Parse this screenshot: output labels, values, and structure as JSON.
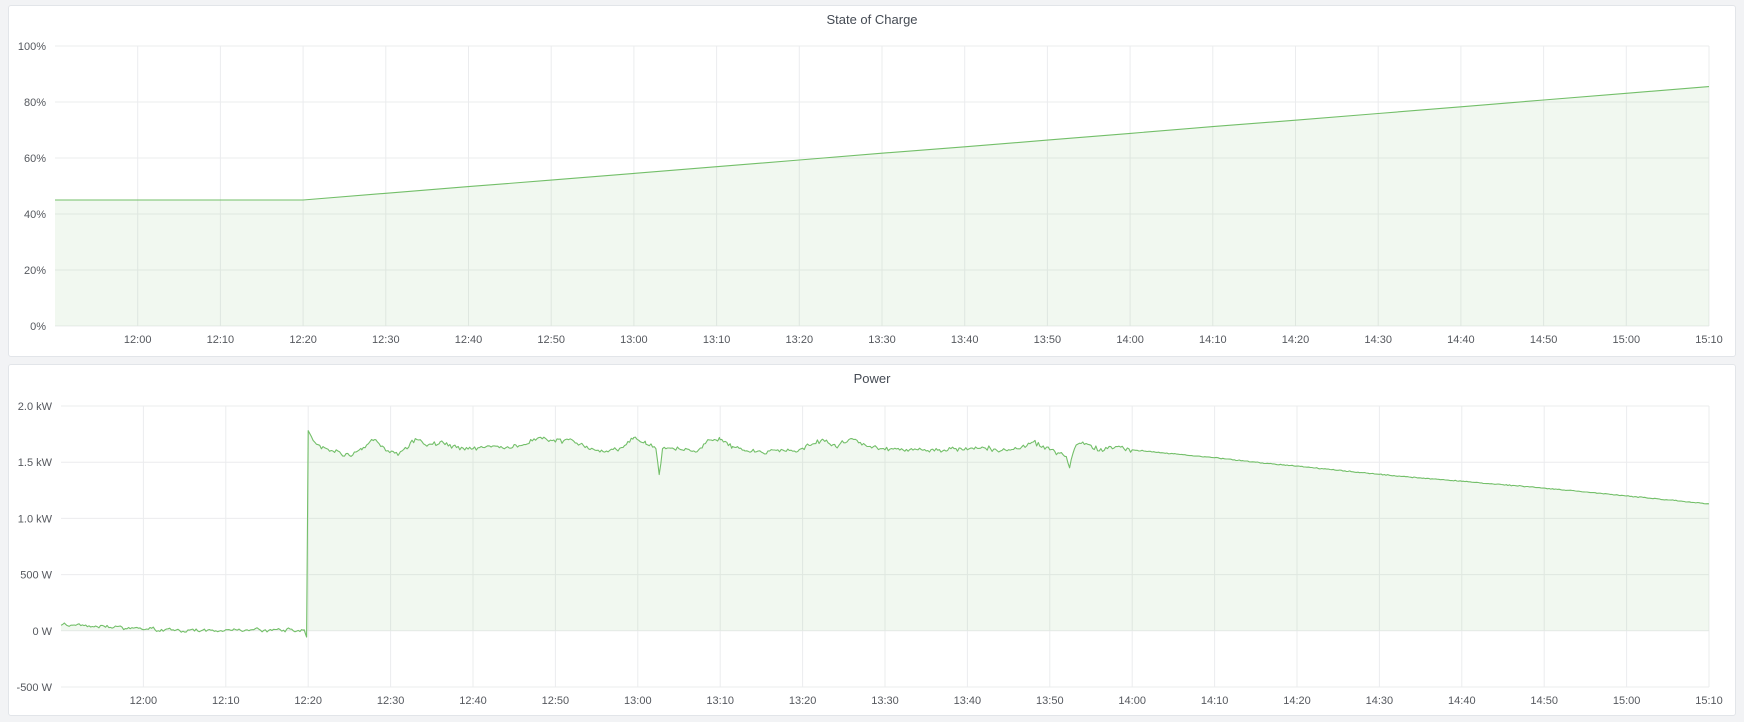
{
  "page": {
    "background_color": "#f2f3f5",
    "panel_background": "#ffffff",
    "panel_border_color": "#e2e5e9",
    "grid_color": "#ebecee",
    "tick_text_color": "#55585e",
    "title_text_color": "#454b54",
    "accent_green": "#73bf69"
  },
  "chart_data": [
    {
      "id": "soc",
      "type": "area",
      "title": "State of Charge",
      "line_color": "#73bf69",
      "fill_color": "rgba(115,191,105,0.10)",
      "x_range": [
        "11:50",
        "15:10"
      ],
      "x_ticks": [
        "12:00",
        "12:10",
        "12:20",
        "12:30",
        "12:40",
        "12:50",
        "13:00",
        "13:10",
        "13:20",
        "13:30",
        "13:40",
        "13:50",
        "14:00",
        "14:10",
        "14:20",
        "14:30",
        "14:40",
        "14:50",
        "15:00",
        "15:10"
      ],
      "ylim": [
        0,
        100
      ],
      "ylabel": "",
      "y_ticks": [
        {
          "v": 0,
          "label": "0%"
        },
        {
          "v": 20,
          "label": "20%"
        },
        {
          "v": 40,
          "label": "40%"
        },
        {
          "v": 60,
          "label": "60%"
        },
        {
          "v": 80,
          "label": "80%"
        },
        {
          "v": 100,
          "label": "100%"
        }
      ],
      "series": [
        {
          "name": "State of Charge",
          "unit": "percent",
          "points": [
            [
              "11:50",
              45.0
            ],
            [
              "12:00",
              45.0
            ],
            [
              "12:10",
              45.0
            ],
            [
              "12:20",
              45.0
            ],
            [
              "12:30",
              47.4
            ],
            [
              "12:40",
              49.8
            ],
            [
              "12:50",
              52.1
            ],
            [
              "13:00",
              54.5
            ],
            [
              "13:10",
              56.9
            ],
            [
              "13:20",
              59.3
            ],
            [
              "13:30",
              61.7
            ],
            [
              "13:40",
              64.0
            ],
            [
              "13:50",
              66.4
            ],
            [
              "14:00",
              68.8
            ],
            [
              "14:10",
              71.2
            ],
            [
              "14:20",
              73.5
            ],
            [
              "14:30",
              75.9
            ],
            [
              "14:40",
              78.3
            ],
            [
              "14:50",
              80.7
            ],
            [
              "15:00",
              83.1
            ],
            [
              "15:10",
              85.5
            ]
          ]
        }
      ]
    },
    {
      "id": "power",
      "type": "area",
      "title": "Power",
      "line_color": "#73bf69",
      "fill_color": "rgba(115,191,105,0.10)",
      "x_range": [
        "11:50",
        "15:10"
      ],
      "x_ticks": [
        "12:00",
        "12:10",
        "12:20",
        "12:30",
        "12:40",
        "12:50",
        "13:00",
        "13:10",
        "13:20",
        "13:30",
        "13:40",
        "13:50",
        "14:00",
        "14:10",
        "14:20",
        "14:30",
        "14:40",
        "14:50",
        "15:00",
        "15:10"
      ],
      "ylim": [
        -500,
        2000
      ],
      "ylabel": "",
      "y_ticks": [
        {
          "v": -500,
          "label": "-500 W"
        },
        {
          "v": 0,
          "label": "0 W"
        },
        {
          "v": 500,
          "label": "500 W"
        },
        {
          "v": 1000,
          "label": "1.0 kW"
        },
        {
          "v": 1500,
          "label": "1.5 kW"
        },
        {
          "v": 2000,
          "label": "2.0 kW"
        }
      ],
      "series": [
        {
          "name": "Power",
          "unit": "W",
          "segments": [
            {
              "label": "idle-noise-before-charge",
              "noise_w": 18,
              "anchors": [
                [
                  "11:50",
                  50
                ],
                [
                  "11:50:30",
                  62
                ],
                [
                  "11:51",
                  40
                ],
                [
                  "11:52",
                  58
                ],
                [
                  "11:53",
                  52
                ],
                [
                  "11:54",
                  35
                ],
                [
                  "11:55",
                  48
                ],
                [
                  "11:56",
                  30
                ],
                [
                  "11:57",
                  40
                ],
                [
                  "11:58",
                  18
                ],
                [
                  "11:59",
                  28
                ],
                [
                  "12:00",
                  10
                ],
                [
                  "12:01",
                  22
                ],
                [
                  "12:02",
                  -5
                ],
                [
                  "12:03",
                  18
                ],
                [
                  "12:04",
                  8
                ],
                [
                  "12:05",
                  -12
                ],
                [
                  "12:06",
                  15
                ],
                [
                  "12:07",
                  0
                ],
                [
                  "12:08",
                  12
                ],
                [
                  "12:09",
                  -8
                ],
                [
                  "12:10",
                  10
                ],
                [
                  "12:11",
                  18
                ],
                [
                  "12:12",
                  -5
                ],
                [
                  "12:13",
                  8
                ],
                [
                  "12:14",
                  15
                ],
                [
                  "12:15",
                  -10
                ],
                [
                  "12:16",
                  12
                ],
                [
                  "12:17",
                  5
                ],
                [
                  "12:18",
                  14
                ],
                [
                  "12:19",
                  -6
                ],
                [
                  "12:19:30",
                  10
                ],
                [
                  "12:19:48",
                  -55
                ]
              ]
            },
            {
              "label": "charging-plateau",
              "noise_w": 26,
              "anchors": [
                [
                  "12:20",
                  1780
                ],
                [
                  "12:21",
                  1660
                ],
                [
                  "12:23",
                  1600
                ],
                [
                  "12:25",
                  1560
                ],
                [
                  "12:26:30",
                  1610
                ],
                [
                  "12:28",
                  1700
                ],
                [
                  "12:29:30",
                  1600
                ],
                [
                  "12:31",
                  1570
                ],
                [
                  "12:33",
                  1710
                ],
                [
                  "12:34:30",
                  1650
                ],
                [
                  "12:36",
                  1680
                ],
                [
                  "12:38",
                  1630
                ],
                [
                  "12:40",
                  1620
                ],
                [
                  "12:42",
                  1645
                ],
                [
                  "12:44",
                  1630
                ],
                [
                  "12:46",
                  1650
                ],
                [
                  "12:48",
                  1720
                ],
                [
                  "12:50",
                  1680
                ],
                [
                  "12:52",
                  1700
                ],
                [
                  "12:54",
                  1620
                ],
                [
                  "12:56",
                  1590
                ],
                [
                  "12:58",
                  1630
                ],
                [
                  "12:59:30",
                  1720
                ],
                [
                  "13:01",
                  1660
                ],
                [
                  "13:02:12",
                  1620
                ],
                [
                  "13:02:36",
                  1390
                ],
                [
                  "13:03",
                  1620
                ],
                [
                  "13:05",
                  1620
                ],
                [
                  "13:07",
                  1590
                ],
                [
                  "13:08:30",
                  1700
                ],
                [
                  "13:10",
                  1700
                ],
                [
                  "13:11:30",
                  1640
                ],
                [
                  "13:13",
                  1600
                ],
                [
                  "13:15",
                  1590
                ],
                [
                  "13:17",
                  1610
                ],
                [
                  "13:19",
                  1600
                ],
                [
                  "13:21",
                  1650
                ],
                [
                  "13:22:30",
                  1700
                ],
                [
                  "13:24",
                  1640
                ],
                [
                  "13:26",
                  1710
                ],
                [
                  "13:28",
                  1640
                ],
                [
                  "13:30",
                  1610
                ],
                [
                  "13:32",
                  1620
                ],
                [
                  "13:34",
                  1610
                ],
                [
                  "13:36",
                  1600
                ],
                [
                  "13:38",
                  1620
                ],
                [
                  "13:40",
                  1610
                ],
                [
                  "13:42",
                  1630
                ],
                [
                  "13:44",
                  1600
                ],
                [
                  "13:46",
                  1620
                ],
                [
                  "13:48",
                  1680
                ],
                [
                  "13:50",
                  1610
                ],
                [
                  "13:52",
                  1550
                ],
                [
                  "13:52:24",
                  1450
                ],
                [
                  "13:53",
                  1620
                ],
                [
                  "13:54",
                  1680
                ],
                [
                  "13:55",
                  1650
                ],
                [
                  "13:56",
                  1600
                ],
                [
                  "13:57",
                  1620
                ],
                [
                  "13:58",
                  1640
                ],
                [
                  "13:59",
                  1620
                ],
                [
                  "14:00",
                  1610
                ]
              ]
            },
            {
              "label": "tapering-decline",
              "noise_w": 5,
              "anchors": [
                [
                  "14:00",
                  1610
                ],
                [
                  "14:05",
                  1575
                ],
                [
                  "14:10",
                  1540
                ],
                [
                  "14:15",
                  1500
                ],
                [
                  "14:20",
                  1465
                ],
                [
                  "14:25",
                  1428
                ],
                [
                  "14:30",
                  1392
                ],
                [
                  "14:35",
                  1360
                ],
                [
                  "14:40",
                  1330
                ],
                [
                  "14:45",
                  1300
                ],
                [
                  "14:50",
                  1270
                ],
                [
                  "14:55",
                  1235
                ],
                [
                  "15:00",
                  1200
                ],
                [
                  "15:05",
                  1165
                ],
                [
                  "15:10",
                  1130
                ]
              ]
            }
          ]
        }
      ]
    }
  ]
}
